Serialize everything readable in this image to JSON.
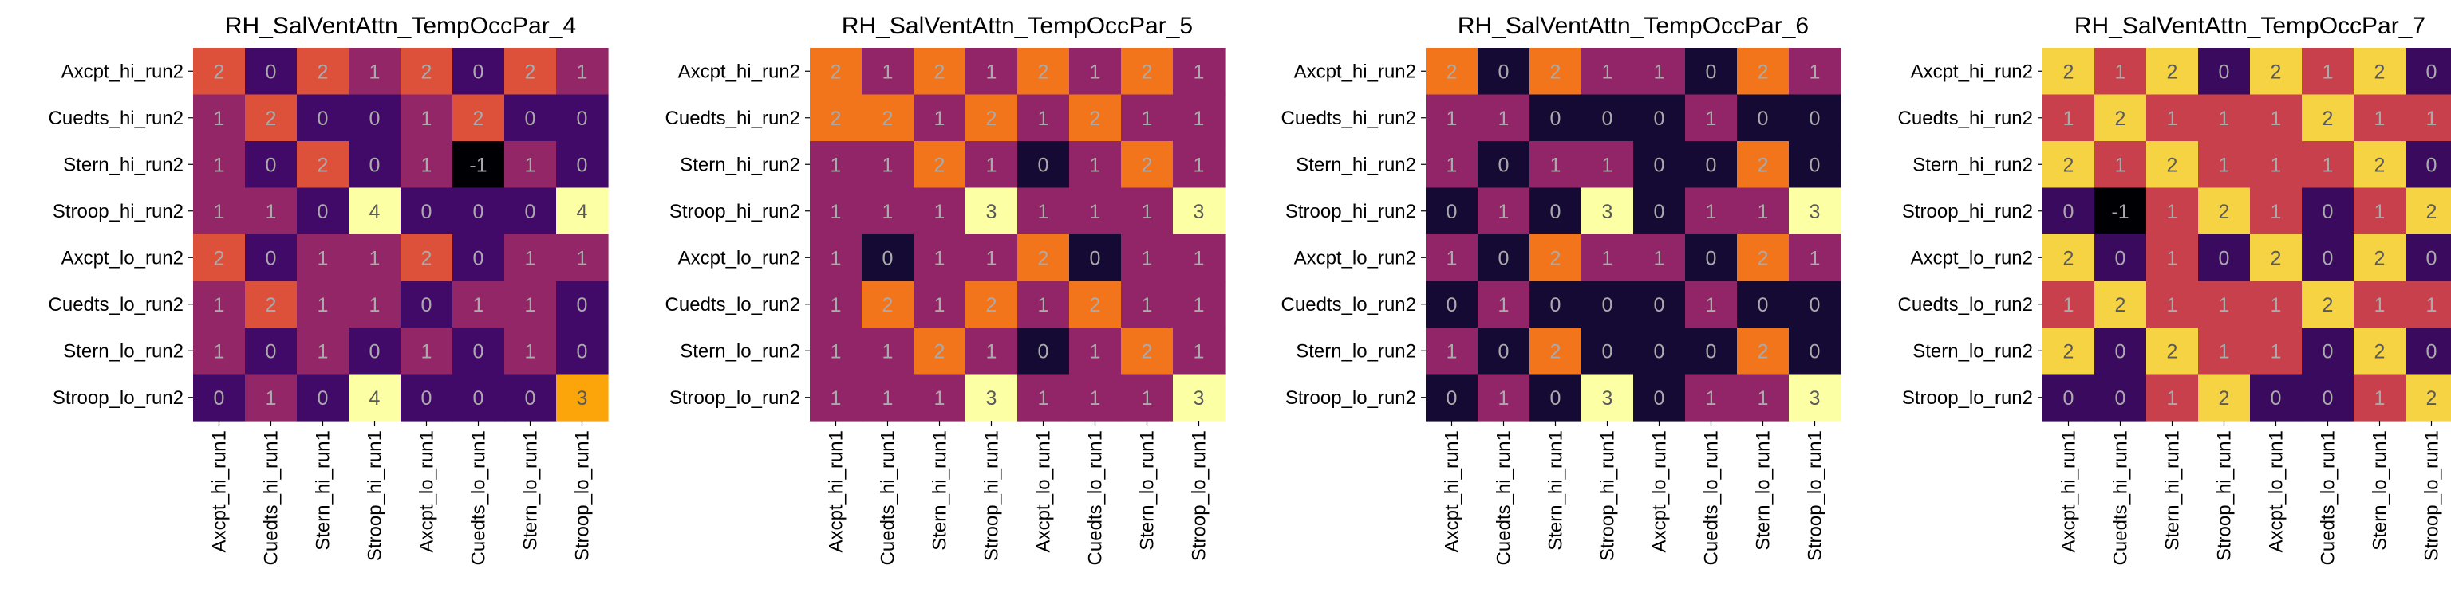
{
  "chart_data": [
    {
      "type": "heatmap",
      "title": "RH_SalVentAttn_TempOccPar_4",
      "row_labels": [
        "Axcpt_hi_run2",
        "Cuedts_hi_run2",
        "Stern_hi_run2",
        "Stroop_hi_run2",
        "Axcpt_lo_run2",
        "Cuedts_lo_run2",
        "Stern_lo_run2",
        "Stroop_lo_run2"
      ],
      "col_labels": [
        "Axcpt_hi_run1",
        "Cuedts_hi_run1",
        "Stern_hi_run1",
        "Stroop_hi_run1",
        "Axcpt_lo_run1",
        "Cuedts_lo_run1",
        "Stern_lo_run1",
        "Stroop_lo_run1"
      ],
      "vmin": -1,
      "vmax": 4,
      "colormap": "inferno",
      "values": [
        [
          2,
          0,
          2,
          1,
          2,
          0,
          2,
          1
        ],
        [
          1,
          2,
          0,
          0,
          1,
          2,
          0,
          0
        ],
        [
          1,
          0,
          2,
          0,
          1,
          -1,
          1,
          0
        ],
        [
          1,
          1,
          0,
          4,
          0,
          0,
          0,
          4
        ],
        [
          2,
          0,
          1,
          1,
          2,
          0,
          1,
          1
        ],
        [
          1,
          2,
          1,
          1,
          0,
          1,
          1,
          0
        ],
        [
          1,
          0,
          1,
          0,
          1,
          0,
          1,
          0
        ],
        [
          0,
          1,
          0,
          4,
          0,
          0,
          0,
          3
        ]
      ]
    },
    {
      "type": "heatmap",
      "title": "RH_SalVentAttn_TempOccPar_5",
      "row_labels": [
        "Axcpt_hi_run2",
        "Cuedts_hi_run2",
        "Stern_hi_run2",
        "Stroop_hi_run2",
        "Axcpt_lo_run2",
        "Cuedts_lo_run2",
        "Stern_lo_run2",
        "Stroop_lo_run2"
      ],
      "col_labels": [
        "Axcpt_hi_run1",
        "Cuedts_hi_run1",
        "Stern_hi_run1",
        "Stroop_hi_run1",
        "Axcpt_lo_run1",
        "Cuedts_lo_run1",
        "Stern_lo_run1",
        "Stroop_lo_run1"
      ],
      "vmin": -0.3,
      "vmax": 3,
      "colormap": "inferno",
      "values": [
        [
          2,
          1,
          2,
          1,
          2,
          1,
          2,
          1
        ],
        [
          2,
          2,
          1,
          2,
          1,
          2,
          1,
          1
        ],
        [
          1,
          1,
          2,
          1,
          0,
          1,
          2,
          1
        ],
        [
          1,
          1,
          1,
          3,
          1,
          1,
          1,
          3
        ],
        [
          1,
          0,
          1,
          1,
          2,
          0,
          1,
          1
        ],
        [
          1,
          2,
          1,
          2,
          1,
          2,
          1,
          1
        ],
        [
          1,
          1,
          2,
          1,
          0,
          1,
          2,
          1
        ],
        [
          1,
          1,
          1,
          3,
          1,
          1,
          1,
          3
        ]
      ]
    },
    {
      "type": "heatmap",
      "title": "RH_SalVentAttn_TempOccPar_6",
      "row_labels": [
        "Axcpt_hi_run2",
        "Cuedts_hi_run2",
        "Stern_hi_run2",
        "Stroop_hi_run2",
        "Axcpt_lo_run2",
        "Cuedts_lo_run2",
        "Stern_lo_run2",
        "Stroop_lo_run2"
      ],
      "col_labels": [
        "Axcpt_hi_run1",
        "Cuedts_hi_run1",
        "Stern_hi_run1",
        "Stroop_hi_run1",
        "Axcpt_lo_run1",
        "Cuedts_lo_run1",
        "Stern_lo_run1",
        "Stroop_lo_run1"
      ],
      "vmin": -0.3,
      "vmax": 3,
      "colormap": "inferno",
      "values": [
        [
          2,
          0,
          2,
          1,
          1,
          0,
          2,
          1
        ],
        [
          1,
          1,
          0,
          0,
          0,
          1,
          0,
          0
        ],
        [
          1,
          0,
          1,
          1,
          0,
          0,
          2,
          0
        ],
        [
          0,
          1,
          0,
          3,
          0,
          1,
          1,
          3
        ],
        [
          1,
          0,
          2,
          1,
          1,
          0,
          2,
          1
        ],
        [
          0,
          1,
          0,
          0,
          0,
          1,
          0,
          0
        ],
        [
          1,
          0,
          2,
          0,
          0,
          0,
          2,
          0
        ],
        [
          0,
          1,
          0,
          3,
          0,
          1,
          1,
          3
        ]
      ]
    },
    {
      "type": "heatmap",
      "title": "RH_SalVentAttn_TempOccPar_7",
      "row_labels": [
        "Axcpt_hi_run2",
        "Cuedts_hi_run2",
        "Stern_hi_run2",
        "Stroop_hi_run2",
        "Axcpt_lo_run2",
        "Cuedts_lo_run2",
        "Stern_lo_run2",
        "Stroop_lo_run2"
      ],
      "col_labels": [
        "Axcpt_hi_run1",
        "Cuedts_hi_run1",
        "Stern_hi_run1",
        "Stroop_hi_run1",
        "Axcpt_lo_run1",
        "Cuedts_lo_run1",
        "Stern_lo_run1",
        "Stroop_lo_run1"
      ],
      "vmin": -0.5,
      "vmax": 2.3,
      "colormap": "inferno",
      "values": [
        [
          2,
          1,
          2,
          0,
          2,
          1,
          2,
          0
        ],
        [
          1,
          2,
          1,
          1,
          1,
          2,
          1,
          1
        ],
        [
          2,
          1,
          2,
          1,
          1,
          1,
          2,
          0
        ],
        [
          0,
          -1,
          1,
          2,
          1,
          0,
          1,
          2
        ],
        [
          2,
          0,
          1,
          0,
          2,
          0,
          2,
          0
        ],
        [
          1,
          2,
          1,
          1,
          1,
          2,
          1,
          1
        ],
        [
          2,
          0,
          2,
          1,
          1,
          0,
          2,
          0
        ],
        [
          0,
          0,
          1,
          2,
          0,
          0,
          1,
          2
        ]
      ]
    }
  ]
}
